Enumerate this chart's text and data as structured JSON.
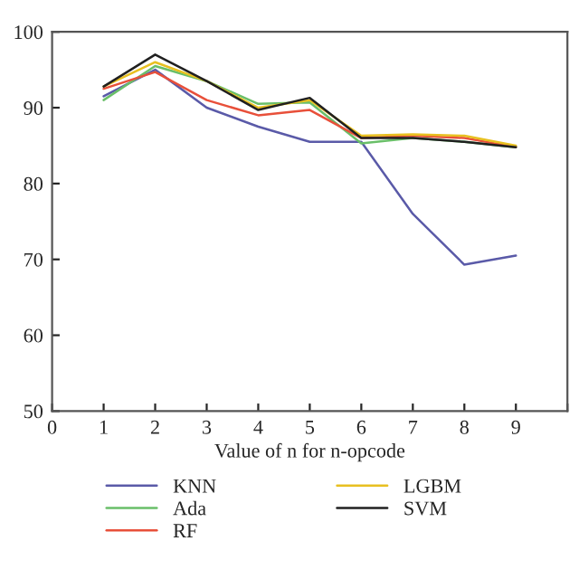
{
  "chart_data": {
    "type": "line",
    "xlabel": "Value of n for n-opcode",
    "x": [
      1,
      2,
      3,
      4,
      5,
      6,
      7,
      8,
      9
    ],
    "series": [
      {
        "name": "KNN",
        "color": "#5a5aa8",
        "values": [
          91.5,
          95,
          90,
          87.5,
          85.5,
          85.5,
          76,
          69.3,
          70.5
        ]
      },
      {
        "name": "Ada",
        "color": "#6abf69",
        "values": [
          91,
          95.5,
          93.5,
          90.5,
          90.7,
          85.3,
          86,
          85.5,
          84.8
        ]
      },
      {
        "name": "RF",
        "color": "#e8503a",
        "values": [
          92.5,
          94.7,
          91,
          89,
          89.7,
          86,
          86.3,
          86,
          84.8
        ]
      },
      {
        "name": "LGBM",
        "color": "#e8c020",
        "values": [
          92.8,
          96,
          93.5,
          90,
          91,
          86.3,
          86.5,
          86.3,
          85
        ]
      },
      {
        "name": "SVM",
        "color": "#202020",
        "values": [
          92.8,
          97,
          93.5,
          89.7,
          91.3,
          86,
          86,
          85.5,
          84.8
        ]
      }
    ],
    "xlim": [
      0,
      10
    ],
    "xticks": [
      0,
      1,
      2,
      3,
      4,
      5,
      6,
      7,
      8,
      9,
      {
        "value": 10,
        "label": null
      }
    ],
    "ylim": [
      50,
      100
    ],
    "yticks": [
      50,
      60,
      70,
      80,
      90,
      100
    ],
    "grid": false,
    "legend": "bottom",
    "marker": "none",
    "line_style": "solid"
  }
}
